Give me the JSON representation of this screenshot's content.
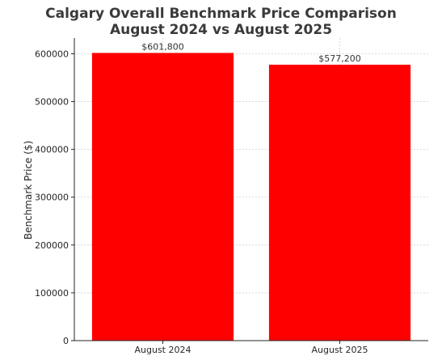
{
  "chart_data": {
    "type": "bar",
    "title_line1": "Calgary Overall Benchmark Price Comparison",
    "title_line2": "August 2024 vs August 2025",
    "xlabel": "",
    "ylabel": "Benchmark Price ($)",
    "categories": [
      "August 2024",
      "August 2025"
    ],
    "values": [
      601800,
      577200
    ],
    "data_labels": [
      "$601,800",
      "$577,200"
    ],
    "ylim": [
      0,
      633000
    ],
    "yticks": [
      0,
      100000,
      200000,
      300000,
      400000,
      500000,
      600000
    ],
    "ytick_labels": [
      "0",
      "100000",
      "200000",
      "300000",
      "400000",
      "500000",
      "600000"
    ],
    "bar_color": "#ff0000",
    "grid": true
  }
}
